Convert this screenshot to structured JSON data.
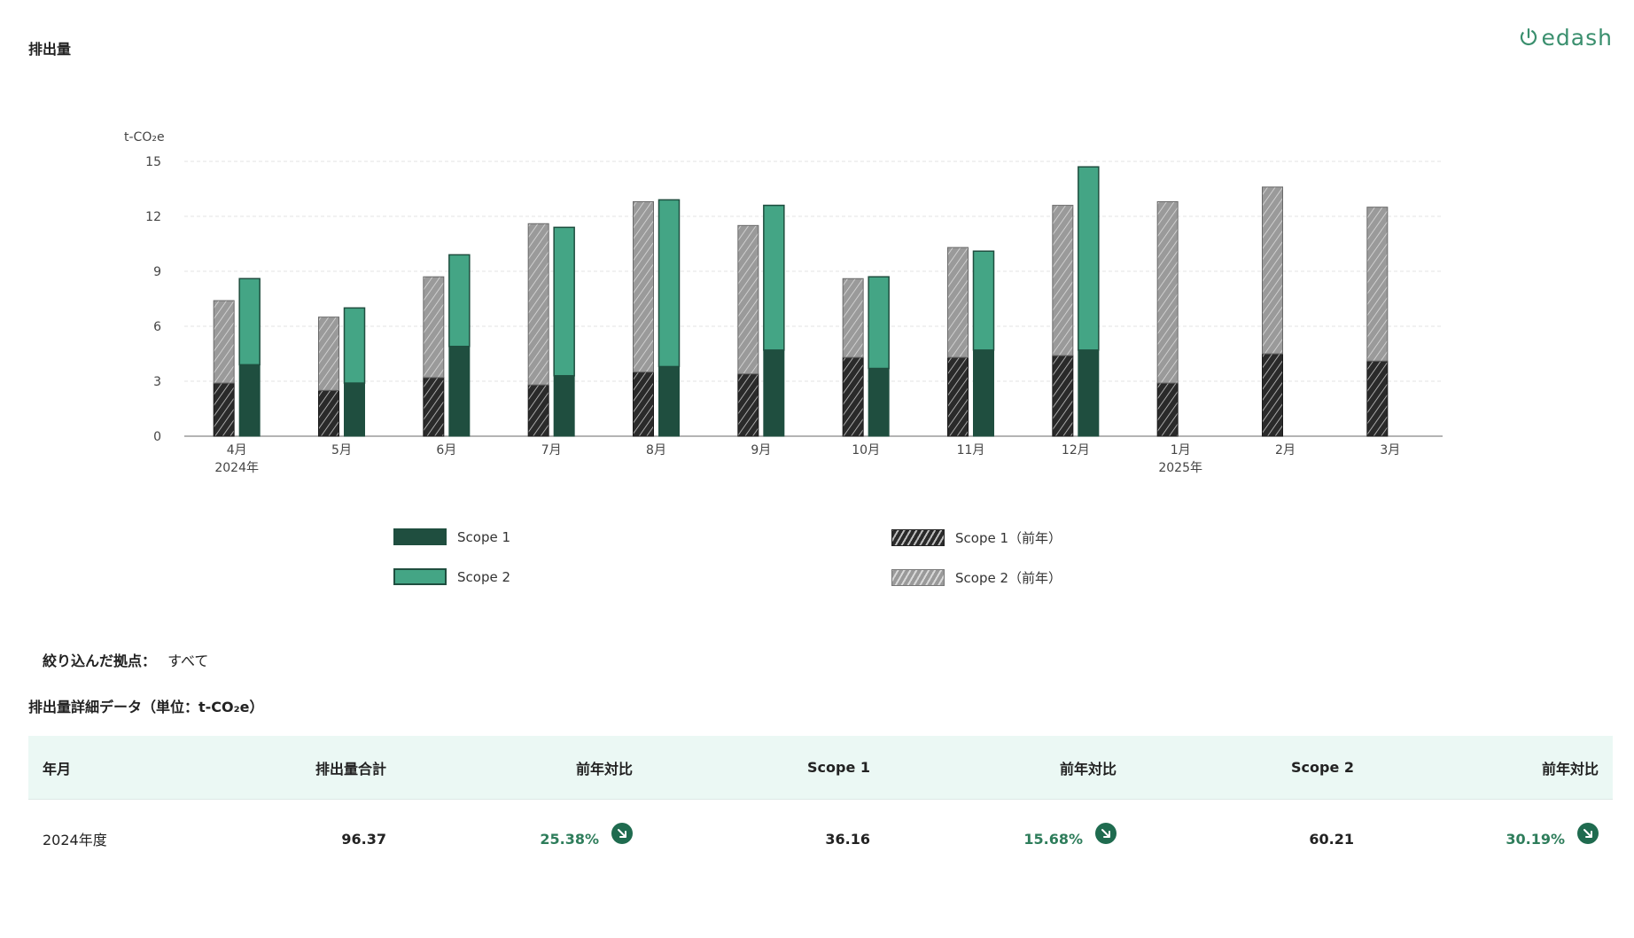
{
  "header": {
    "title": "排出量",
    "logo_text": "edash"
  },
  "colors": {
    "scope1": "#1f4e3f",
    "scope2": "#44a585",
    "scope1_prev": "#2a2a2a",
    "scope2_prev": "#9a9a9a",
    "accent_green": "#2e7d5b",
    "table_header_bg": "#ebf8f4"
  },
  "chart_data": {
    "type": "bar",
    "stacked": true,
    "unit": "t-CO₂e",
    "categories": [
      "4月",
      "5月",
      "6月",
      "7月",
      "8月",
      "9月",
      "10月",
      "11月",
      "12月",
      "1月",
      "2月",
      "3月"
    ],
    "year_labels": {
      "4月": "2024年",
      "1月": "2025年"
    },
    "yticks": [
      0,
      3,
      6,
      9,
      12,
      15
    ],
    "ylim": [
      0,
      15
    ],
    "grid": true,
    "series": [
      {
        "name": "Scope 1",
        "stack": "current",
        "values": [
          3.9,
          2.9,
          4.9,
          3.3,
          3.8,
          4.7,
          3.7,
          4.7,
          4.7,
          null,
          null,
          null
        ]
      },
      {
        "name": "Scope 2",
        "stack": "current",
        "values": [
          4.7,
          4.1,
          5.0,
          8.1,
          9.1,
          7.9,
          5.0,
          5.4,
          10.0,
          null,
          null,
          null
        ]
      },
      {
        "name": "Scope 1（前年）",
        "stack": "previous",
        "values": [
          2.9,
          2.5,
          3.2,
          2.8,
          3.5,
          3.4,
          4.3,
          4.3,
          4.4,
          2.9,
          4.5,
          4.1
        ]
      },
      {
        "name": "Scope 2（前年）",
        "stack": "previous",
        "values": [
          4.5,
          4.0,
          5.5,
          8.8,
          9.3,
          8.1,
          4.3,
          6.0,
          8.2,
          9.9,
          9.1,
          8.4
        ]
      }
    ],
    "legend": [
      "Scope 1",
      "Scope 2",
      "Scope 1（前年）",
      "Scope 2（前年）"
    ],
    "legend_position": "bottom"
  },
  "filter": {
    "label": "絞り込んだ拠点：",
    "value": "すべて"
  },
  "table": {
    "title": "排出量詳細データ（単位：t-CO₂e）",
    "headers": [
      "年月",
      "排出量合計",
      "前年対比",
      "Scope 1",
      "前年対比",
      "Scope 2",
      "前年対比"
    ],
    "rows": [
      {
        "period": "2024年度",
        "total": "96.37",
        "total_yoy": "25.38%",
        "scope1": "36.16",
        "scope1_yoy": "15.68%",
        "scope2": "60.21",
        "scope2_yoy": "30.19%"
      }
    ]
  }
}
